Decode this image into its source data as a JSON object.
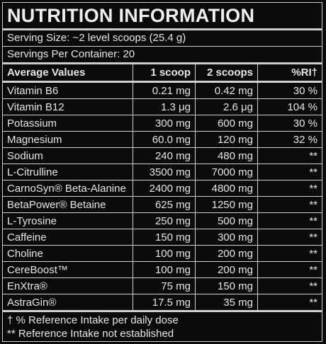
{
  "title": "NUTRITION INFORMATION",
  "serving_size": "Serving Size: ~2 level scoops (25.4 g)",
  "servings_per_container": "Servings Per Container: 20",
  "columns": [
    "Average Values",
    "1 scoop",
    "2 scoops",
    "%RI†"
  ],
  "rows": [
    [
      "Vitamin B6",
      "0.21 mg",
      "0.42 mg",
      "30 %"
    ],
    [
      "Vitamin B12",
      "1.3 μg",
      "2.6 μg",
      "104 %"
    ],
    [
      "Potassium",
      "300 mg",
      "600 mg",
      "30 %"
    ],
    [
      "Magnesium",
      "60.0 mg",
      "120 mg",
      "32 %"
    ],
    [
      "Sodium",
      "240 mg",
      "480 mg",
      "**"
    ],
    [
      "L-Citrulline",
      "3500 mg",
      "7000 mg",
      "**"
    ],
    [
      "CarnoSyn® Beta-Alanine",
      "2400 mg",
      "4800 mg",
      "**"
    ],
    [
      "BetaPower® Betaine",
      "625 mg",
      "1250 mg",
      "**"
    ],
    [
      "L-Tyrosine",
      "250 mg",
      "500 mg",
      "**"
    ],
    [
      "Caffeine",
      "150 mg",
      "300 mg",
      "**"
    ],
    [
      "Choline",
      "100 mg",
      "200 mg",
      "**"
    ],
    [
      "CereBoost™",
      "100 mg",
      "200 mg",
      "**"
    ],
    [
      "EnXtra®",
      "75 mg",
      "150 mg",
      "**"
    ],
    [
      "AstraGin®",
      "17.5 mg",
      "35 mg",
      "**"
    ]
  ],
  "footnotes": [
    "† % Reference Intake per daily dose",
    "** Reference Intake not established"
  ],
  "colors": {
    "background": "#0b0b0b",
    "text": "#e6e6e6",
    "rules": "#cfcfcf"
  }
}
